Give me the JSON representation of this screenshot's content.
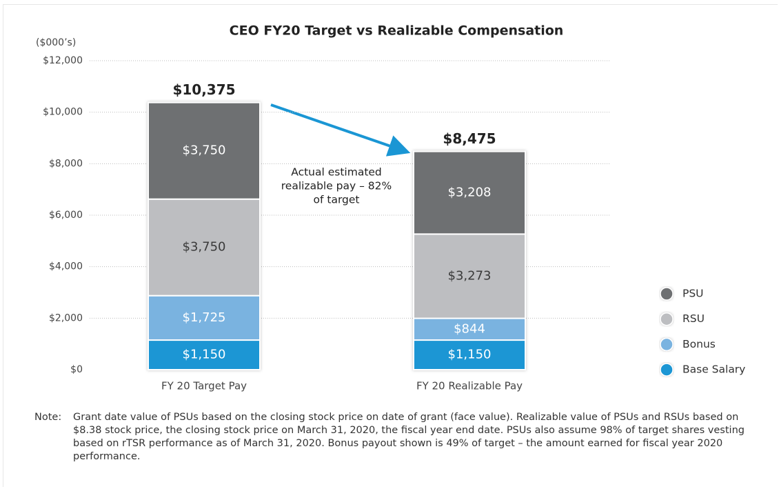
{
  "chart_data": {
    "type": "stacked_bar",
    "title": "CEO FY20 Target vs Realizable Compensation",
    "unit_label": "($000’s)",
    "categories": [
      "FY 20 Target Pay",
      "FY 20 Realizable Pay"
    ],
    "series": [
      {
        "name": "Base Salary",
        "color": "#1a96d4",
        "label_color": "#ffffff",
        "values": [
          1150,
          1150
        ],
        "value_labels": [
          "$1,150",
          "$1,150"
        ]
      },
      {
        "name": "Bonus",
        "color": "#7ab3e0",
        "label_color": "#ffffff",
        "values": [
          1725,
          844
        ],
        "value_labels": [
          "$1,725",
          "$844"
        ]
      },
      {
        "name": "RSU",
        "color": "#bdbec1",
        "label_color": "#3a3a3a",
        "values": [
          3750,
          3273
        ],
        "value_labels": [
          "$3,750",
          "$3,273"
        ]
      },
      {
        "name": "PSU",
        "color": "#6e6f72",
        "label_color": "#ffffff",
        "values": [
          3750,
          3208
        ],
        "value_labels": [
          "$3,750",
          "$3,208"
        ]
      }
    ],
    "totals": {
      "values": [
        10375,
        8475
      ],
      "value_labels": [
        "$10,375",
        "$8,475"
      ]
    },
    "annotation": {
      "lines": [
        "Actual estimated",
        "realizable pay – 82%",
        "of target"
      ]
    },
    "ylim": [
      0,
      12000
    ],
    "yticks": [
      {
        "value": 0,
        "label": "$0"
      },
      {
        "value": 2000,
        "label": "$2,000"
      },
      {
        "value": 4000,
        "label": "$4,000"
      },
      {
        "value": 6000,
        "label": "$6,000"
      },
      {
        "value": 8000,
        "label": "$8,000"
      },
      {
        "value": 10000,
        "label": "$10,000"
      },
      {
        "value": 12000,
        "label": "$12,000"
      }
    ],
    "grid": true,
    "legend": "right",
    "note_label": "Note:",
    "note": "Grant date value of PSUs based on the closing stock price on date of grant (face value). Realizable value of PSUs and RSUs based on $8.38 stock price, the closing stock price on March 31, 2020, the fiscal year end date. PSUs also assume 98% of target shares vesting based on rTSR performance as of March 31, 2020. Bonus payout shown is 49% of target – the amount earned for fiscal year 2020 performance."
  }
}
